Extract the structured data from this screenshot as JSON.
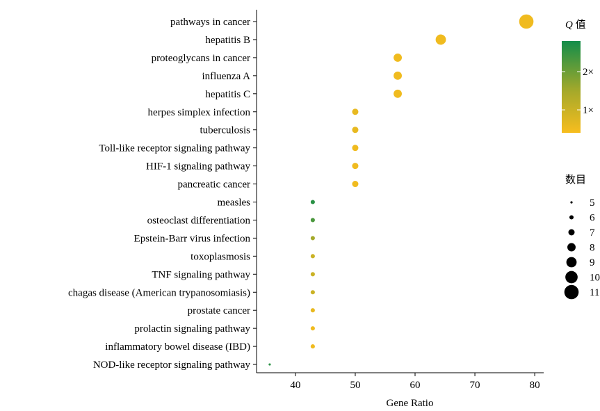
{
  "chart_data": {
    "type": "scatter",
    "title": "",
    "xlabel": "Gene Ratio",
    "ylabel": "",
    "xlim": [
      33.5,
      81.5
    ],
    "xticks": [
      40,
      50,
      60,
      70,
      80
    ],
    "grid": false,
    "points": [
      {
        "category": "pathways in cancer",
        "x": 78.6,
        "count": 11,
        "q": 0.5
      },
      {
        "category": "hepatitis B",
        "x": 64.3,
        "count": 9,
        "q": 0.5
      },
      {
        "category": "proteoglycans in cancer",
        "x": 57.1,
        "count": 8,
        "q": 0.5
      },
      {
        "category": "influenza A",
        "x": 57.1,
        "count": 8,
        "q": 0.5
      },
      {
        "category": "hepatitis C",
        "x": 57.1,
        "count": 8,
        "q": 0.5
      },
      {
        "category": "herpes simplex infection",
        "x": 50.0,
        "count": 7,
        "q": 0.6
      },
      {
        "category": "tuberculosis",
        "x": 50.0,
        "count": 7,
        "q": 0.6
      },
      {
        "category": "Toll-like receptor signaling pathway",
        "x": 50.0,
        "count": 7,
        "q": 0.5
      },
      {
        "category": "HIF-1 signaling pathway",
        "x": 50.0,
        "count": 7,
        "q": 0.5
      },
      {
        "category": "pancreatic cancer",
        "x": 50.0,
        "count": 7,
        "q": 0.5
      },
      {
        "category": "measles",
        "x": 42.9,
        "count": 6,
        "q": 2.6
      },
      {
        "category": "osteoclast differentiation",
        "x": 42.9,
        "count": 6,
        "q": 2.3
      },
      {
        "category": "Epstein-Barr virus infection",
        "x": 42.9,
        "count": 6,
        "q": 1.5
      },
      {
        "category": "toxoplasmosis",
        "x": 42.9,
        "count": 6,
        "q": 1.0
      },
      {
        "category": "TNF signaling pathway",
        "x": 42.9,
        "count": 6,
        "q": 1.0
      },
      {
        "category": "chagas disease (American trypanosomiasis)",
        "x": 42.9,
        "count": 6,
        "q": 1.0
      },
      {
        "category": "prostate cancer",
        "x": 42.9,
        "count": 6,
        "q": 0.6
      },
      {
        "category": "prolactin signaling pathway",
        "x": 42.9,
        "count": 6,
        "q": 0.5
      },
      {
        "category": "inflammatory bowel disease (IBD)",
        "x": 42.9,
        "count": 6,
        "q": 0.5
      },
      {
        "category": "NOD-like receptor signaling pathway",
        "x": 35.7,
        "count": 5,
        "q": 2.6
      }
    ],
    "legend": {
      "color_title_italic": "Q",
      "color_title_suffix": " 值",
      "color_ticks": [
        "2×",
        "1×"
      ],
      "color_tick_values": [
        2,
        1
      ],
      "color_range": [
        0.4,
        2.8
      ],
      "color_low": "#f7bd1e",
      "color_mid": "#a6a92a",
      "color_high": "#138d4a",
      "size_title": "数目",
      "size_values": [
        5,
        6,
        7,
        8,
        9,
        10,
        11
      ]
    }
  }
}
